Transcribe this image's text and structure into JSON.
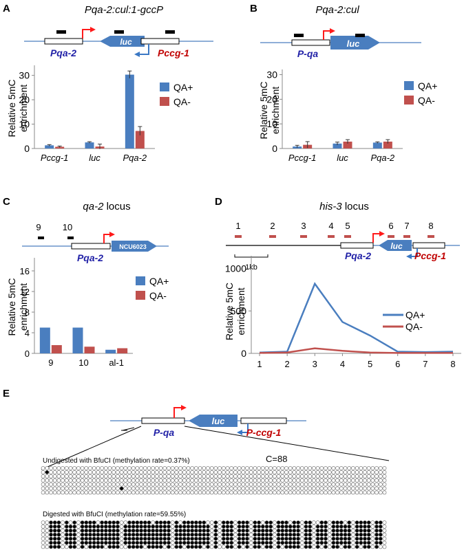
{
  "colors": {
    "qa_plus": "#4a7ebf",
    "qa_minus": "#c0504d",
    "promoter_blue": "#1f1fa6",
    "promoter_red": "#c00000",
    "arrow_red": "#ff1a1a",
    "arrow_blue": "#3b78c4",
    "luc_blue": "#4a7ebf",
    "line_blue": "#4a7ebf"
  },
  "panels": {
    "A": {
      "letter": "A",
      "title": "Pqa-2:cul:1-gccP",
      "labels": {
        "pqa": "Pqa-2",
        "luc": "luc",
        "pccg": "Pccg-1"
      }
    },
    "B": {
      "letter": "B",
      "title": "Pqa-2:cul",
      "labels": {
        "pqa": "P-qa",
        "luc": "luc"
      }
    },
    "C": {
      "letter": "C",
      "title_italic": "qa-2",
      "title_rest": " locus",
      "labels": {
        "pqa": "Pqa-2",
        "gene": "NCU6023",
        "site9": "9",
        "site10": "10"
      }
    },
    "D": {
      "letter": "D",
      "title_italic": "his-3",
      "title_rest": " locus",
      "labels": {
        "pqa": "Pqa-2",
        "luc": "luc",
        "pccg": "Pccg-1",
        "scale": "1kb"
      },
      "sites": [
        "1",
        "2",
        "3",
        "4",
        "5",
        "6",
        "7",
        "8"
      ]
    },
    "E": {
      "letter": "E",
      "labels": {
        "pqa": "P-qa",
        "luc": "luc",
        "pccg": "P-ccg-1"
      },
      "undigested_label": "Undigested with BfuCI (methylation rate=0.37%)",
      "digested_label": "Digested with BfuCI (methylation rate=59.55%)",
      "c_count": "C=88"
    }
  },
  "chart_data": [
    {
      "panel": "A",
      "type": "bar",
      "ylabel_line1": "Relative 5mC",
      "ylabel_line2": "enrichment",
      "categories": [
        "Pccg-1",
        "luc",
        "Pqa-2"
      ],
      "series": [
        {
          "name": "QA+",
          "values": [
            1.3,
            2.5,
            30.3
          ],
          "errors": [
            0.3,
            0.3,
            1.5
          ]
        },
        {
          "name": "QA-",
          "values": [
            0.7,
            0.8,
            7.2
          ],
          "errors": [
            0.3,
            1.0,
            1.8
          ]
        }
      ],
      "ylim": [
        0,
        33
      ],
      "ticks": [
        "0",
        "10",
        "20",
        "30"
      ],
      "tick_values": [
        0,
        10,
        20,
        30
      ],
      "legend": "right"
    },
    {
      "panel": "B",
      "type": "bar",
      "ylabel_line1": "Relative 5mC",
      "ylabel_line2": "enrichment",
      "categories": [
        "Pccg-1",
        "luc",
        "Pqa-2"
      ],
      "series": [
        {
          "name": "QA+",
          "values": [
            0.8,
            2.0,
            2.4
          ],
          "errors": [
            0.5,
            0.6,
            0.3
          ]
        },
        {
          "name": "QA-",
          "values": [
            1.5,
            2.8,
            2.8
          ],
          "errors": [
            1.3,
            0.8,
            0.8
          ]
        }
      ],
      "ylim": [
        0,
        31
      ],
      "ticks": [
        "0",
        "10",
        "20",
        "30"
      ],
      "tick_values": [
        0,
        10,
        20,
        30
      ],
      "legend": "right"
    },
    {
      "panel": "C",
      "type": "bar",
      "ylabel_line1": "Relative 5mC",
      "ylabel_line2": "enrichment",
      "categories": [
        "9",
        "10",
        "al-1"
      ],
      "series": [
        {
          "name": "QA+",
          "values": [
            5.0,
            5.0,
            0.7
          ]
        },
        {
          "name": "QA-",
          "values": [
            1.6,
            1.3,
            1.0
          ]
        }
      ],
      "ylim": [
        0,
        18
      ],
      "ticks": [
        "0",
        "4",
        "8",
        "12",
        "16"
      ],
      "tick_values": [
        0,
        4,
        8,
        12,
        16
      ],
      "legend": "right"
    },
    {
      "panel": "D",
      "type": "line",
      "ylabel_line1": "Relative 5mC",
      "ylabel_line2": "enrichment",
      "x": [
        "1",
        "2",
        "3",
        "4",
        "5",
        "6",
        "7",
        "8"
      ],
      "series": [
        {
          "name": "QA+",
          "values": [
            10,
            20,
            820,
            370,
            210,
            20,
            15,
            20
          ]
        },
        {
          "name": "QA-",
          "values": [
            5,
            10,
            60,
            30,
            10,
            5,
            5,
            5
          ]
        }
      ],
      "ylim": [
        0,
        1150
      ],
      "ticks": [
        "0",
        "500",
        "1000"
      ],
      "tick_values": [
        0,
        500,
        1000
      ],
      "legend": "right"
    }
  ],
  "methylation": {
    "columns": 88,
    "undigested_rows": 7,
    "undigested_filled": [
      [
        1,
        1
      ],
      [
        5,
        20
      ]
    ],
    "digested_rows": 7,
    "digested_filled_cols": [
      2,
      3,
      4,
      6,
      7,
      8,
      10,
      11,
      12,
      13,
      14,
      15,
      16,
      17,
      18,
      19,
      21,
      22,
      23,
      24,
      25,
      26,
      27,
      28,
      29,
      30,
      31,
      32,
      34,
      35,
      36,
      37,
      38,
      39,
      40,
      41,
      42,
      44,
      46,
      47,
      48,
      50,
      51,
      52,
      54,
      55,
      56,
      57,
      58,
      60,
      61,
      62,
      63,
      64,
      65,
      67,
      68,
      70,
      71,
      72,
      74,
      75,
      76,
      77,
      78,
      80,
      81,
      82,
      83,
      85,
      86
    ]
  }
}
